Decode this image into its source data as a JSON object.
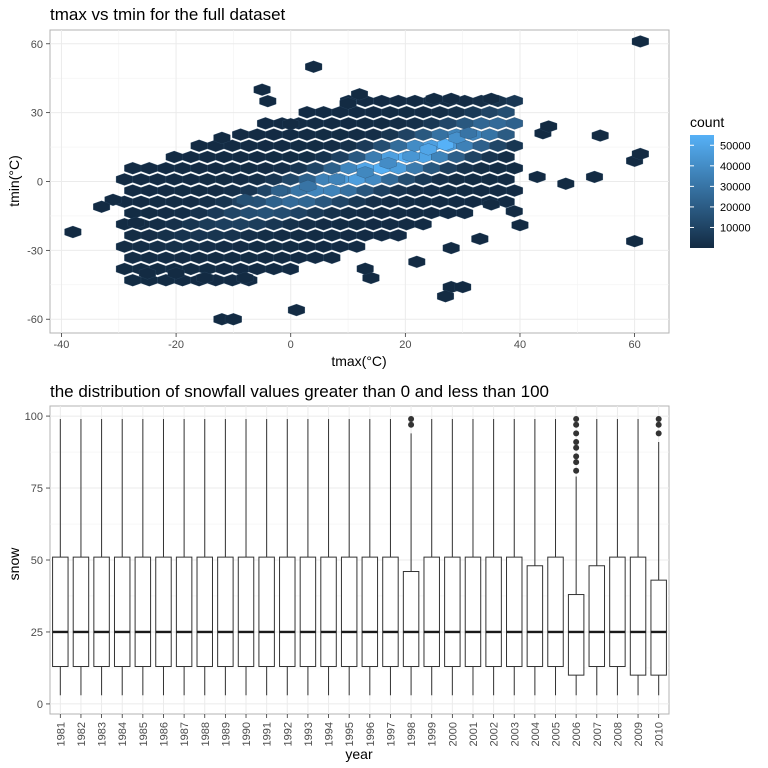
{
  "chart_data": [
    {
      "type": "hexbin",
      "title": "tmax vs tmin for the full dataset",
      "xlabel": "tmax(°C)",
      "ylabel": "tmin(°C)",
      "xlim": [
        -42,
        66
      ],
      "ylim": [
        -66,
        66
      ],
      "xticks": [
        -40,
        -20,
        0,
        20,
        40,
        60
      ],
      "yticks": [
        -60,
        -30,
        0,
        30,
        60
      ],
      "grid": true,
      "legend": {
        "title": "count",
        "position": "right",
        "breaks": [
          10000,
          20000,
          30000,
          40000,
          50000
        ],
        "range": [
          1,
          55000
        ],
        "colors": [
          "#132B43",
          "#56B1F7"
        ]
      },
      "points": [
        {
          "x": -38,
          "y": -22,
          "count": 1
        },
        {
          "x": -31,
          "y": -8,
          "count": 40
        },
        {
          "x": -33,
          "y": -11,
          "count": 1
        },
        {
          "x": -27,
          "y": -18,
          "count": 150
        },
        {
          "x": -25,
          "y": -40,
          "count": 1
        },
        {
          "x": -20,
          "y": -40,
          "count": 1
        },
        {
          "x": -15,
          "y": -42,
          "count": 1
        },
        {
          "x": -8,
          "y": -42,
          "count": 1
        },
        {
          "x": -12,
          "y": -60,
          "count": 1
        },
        {
          "x": -10,
          "y": -60,
          "count": 1
        },
        {
          "x": -12,
          "y": 19,
          "count": 1
        },
        {
          "x": -5,
          "y": 40,
          "count": 1
        },
        {
          "x": -4,
          "y": 35,
          "count": 1
        },
        {
          "x": 4,
          "y": 50,
          "count": 1
        },
        {
          "x": 1,
          "y": -56,
          "count": 1
        },
        {
          "x": 25,
          "y": 36,
          "count": 1
        },
        {
          "x": 28,
          "y": 36,
          "count": 1
        },
        {
          "x": 35,
          "y": 36,
          "count": 1
        },
        {
          "x": 43,
          "y": 2,
          "count": 1
        },
        {
          "x": 48,
          "y": -1,
          "count": 1
        },
        {
          "x": 53,
          "y": 2,
          "count": 1
        },
        {
          "x": 54,
          "y": 20,
          "count": 1
        },
        {
          "x": 60,
          "y": 9,
          "count": 1
        },
        {
          "x": 61,
          "y": 12,
          "count": 1
        },
        {
          "x": 60,
          "y": -26,
          "count": 1
        },
        {
          "x": 61,
          "y": 61,
          "count": 1
        },
        {
          "x": 28,
          "y": -46,
          "count": 1
        },
        {
          "x": 30,
          "y": -46,
          "count": 1
        },
        {
          "x": 27,
          "y": -50,
          "count": 1
        },
        {
          "x": 14,
          "y": -42,
          "count": 1
        },
        {
          "x": 13,
          "y": -38,
          "count": 1
        },
        {
          "x": 22,
          "y": -35,
          "count": 1
        },
        {
          "x": 28,
          "y": -29,
          "count": 1
        },
        {
          "x": 33,
          "y": -25,
          "count": 1
        },
        {
          "x": 40,
          "y": -19,
          "count": 1
        },
        {
          "x": 35,
          "y": -10,
          "count": 1
        },
        {
          "x": 39,
          "y": -13,
          "count": 1
        },
        {
          "x": 44,
          "y": 21,
          "count": 1
        },
        {
          "x": 45,
          "y": 24,
          "count": 1
        },
        {
          "x": 12,
          "y": 38,
          "count": 1
        },
        {
          "x": 10,
          "y": 34,
          "count": 1
        },
        {
          "x": 0,
          "y": 25,
          "count": 1
        },
        {
          "x": -8,
          "y": -8,
          "count": 15000
        },
        {
          "x": -2,
          "y": -4,
          "count": 22000
        },
        {
          "x": 3,
          "y": -2,
          "count": 30000
        },
        {
          "x": 8,
          "y": 1,
          "count": 36000
        },
        {
          "x": 13,
          "y": 4,
          "count": 38000
        },
        {
          "x": 17,
          "y": 8,
          "count": 40000
        },
        {
          "x": 21,
          "y": 11,
          "count": 44000
        },
        {
          "x": 24,
          "y": 14,
          "count": 50000
        },
        {
          "x": 27,
          "y": 16,
          "count": 55000
        },
        {
          "x": 29,
          "y": 19,
          "count": 42000
        },
        {
          "x": 31,
          "y": 21,
          "count": 30000
        }
      ]
    },
    {
      "type": "boxplot",
      "title": "the distribution of snowfall values greater than 0 and less than 100",
      "xlabel": "year",
      "ylabel": "snow",
      "ylim": [
        0,
        100
      ],
      "yticks": [
        0,
        25,
        50,
        75,
        100
      ],
      "grid": true,
      "categories": [
        "1981",
        "1982",
        "1983",
        "1984",
        "1985",
        "1986",
        "1987",
        "1988",
        "1989",
        "1990",
        "1991",
        "1992",
        "1993",
        "1994",
        "1995",
        "1996",
        "1997",
        "1998",
        "1999",
        "2000",
        "2001",
        "2002",
        "2003",
        "2004",
        "2005",
        "2006",
        "2007",
        "2008",
        "2009",
        "2010"
      ],
      "boxes": [
        {
          "min": 3,
          "q1": 13,
          "median": 25,
          "q3": 51,
          "max": 99,
          "outliers": []
        },
        {
          "min": 3,
          "q1": 13,
          "median": 25,
          "q3": 51,
          "max": 99,
          "outliers": []
        },
        {
          "min": 3,
          "q1": 13,
          "median": 25,
          "q3": 51,
          "max": 99,
          "outliers": []
        },
        {
          "min": 3,
          "q1": 13,
          "median": 25,
          "q3": 51,
          "max": 99,
          "outliers": []
        },
        {
          "min": 3,
          "q1": 13,
          "median": 25,
          "q3": 51,
          "max": 99,
          "outliers": []
        },
        {
          "min": 3,
          "q1": 13,
          "median": 25,
          "q3": 51,
          "max": 99,
          "outliers": []
        },
        {
          "min": 3,
          "q1": 13,
          "median": 25,
          "q3": 51,
          "max": 99,
          "outliers": []
        },
        {
          "min": 3,
          "q1": 13,
          "median": 25,
          "q3": 51,
          "max": 99,
          "outliers": []
        },
        {
          "min": 3,
          "q1": 13,
          "median": 25,
          "q3": 51,
          "max": 99,
          "outliers": []
        },
        {
          "min": 3,
          "q1": 13,
          "median": 25,
          "q3": 51,
          "max": 99,
          "outliers": []
        },
        {
          "min": 3,
          "q1": 13,
          "median": 25,
          "q3": 51,
          "max": 99,
          "outliers": []
        },
        {
          "min": 3,
          "q1": 13,
          "median": 25,
          "q3": 51,
          "max": 99,
          "outliers": []
        },
        {
          "min": 3,
          "q1": 13,
          "median": 25,
          "q3": 51,
          "max": 99,
          "outliers": []
        },
        {
          "min": 3,
          "q1": 13,
          "median": 25,
          "q3": 51,
          "max": 99,
          "outliers": []
        },
        {
          "min": 3,
          "q1": 13,
          "median": 25,
          "q3": 51,
          "max": 99,
          "outliers": []
        },
        {
          "min": 3,
          "q1": 13,
          "median": 25,
          "q3": 51,
          "max": 99,
          "outliers": []
        },
        {
          "min": 3,
          "q1": 13,
          "median": 25,
          "q3": 51,
          "max": 99,
          "outliers": []
        },
        {
          "min": 3,
          "q1": 13,
          "median": 25,
          "q3": 46,
          "max": 94,
          "outliers": [
            97,
            99
          ]
        },
        {
          "min": 3,
          "q1": 13,
          "median": 25,
          "q3": 51,
          "max": 99,
          "outliers": []
        },
        {
          "min": 3,
          "q1": 13,
          "median": 25,
          "q3": 51,
          "max": 99,
          "outliers": []
        },
        {
          "min": 3,
          "q1": 13,
          "median": 25,
          "q3": 51,
          "max": 99,
          "outliers": []
        },
        {
          "min": 3,
          "q1": 13,
          "median": 25,
          "q3": 51,
          "max": 99,
          "outliers": []
        },
        {
          "min": 3,
          "q1": 13,
          "median": 25,
          "q3": 51,
          "max": 99,
          "outliers": []
        },
        {
          "min": 3,
          "q1": 13,
          "median": 25,
          "q3": 48,
          "max": 99,
          "outliers": []
        },
        {
          "min": 3,
          "q1": 13,
          "median": 25,
          "q3": 51,
          "max": 99,
          "outliers": []
        },
        {
          "min": 3,
          "q1": 10,
          "median": 25,
          "q3": 38,
          "max": 79,
          "outliers": [
            81,
            84,
            86,
            89,
            91,
            94,
            97,
            99
          ]
        },
        {
          "min": 3,
          "q1": 13,
          "median": 25,
          "q3": 48,
          "max": 99,
          "outliers": []
        },
        {
          "min": 3,
          "q1": 13,
          "median": 25,
          "q3": 51,
          "max": 99,
          "outliers": []
        },
        {
          "min": 3,
          "q1": 10,
          "median": 25,
          "q3": 51,
          "max": 99,
          "outliers": []
        },
        {
          "min": 3,
          "q1": 10,
          "median": 25,
          "q3": 43,
          "max": 91,
          "outliers": [
            94,
            97,
            99
          ]
        }
      ]
    }
  ]
}
